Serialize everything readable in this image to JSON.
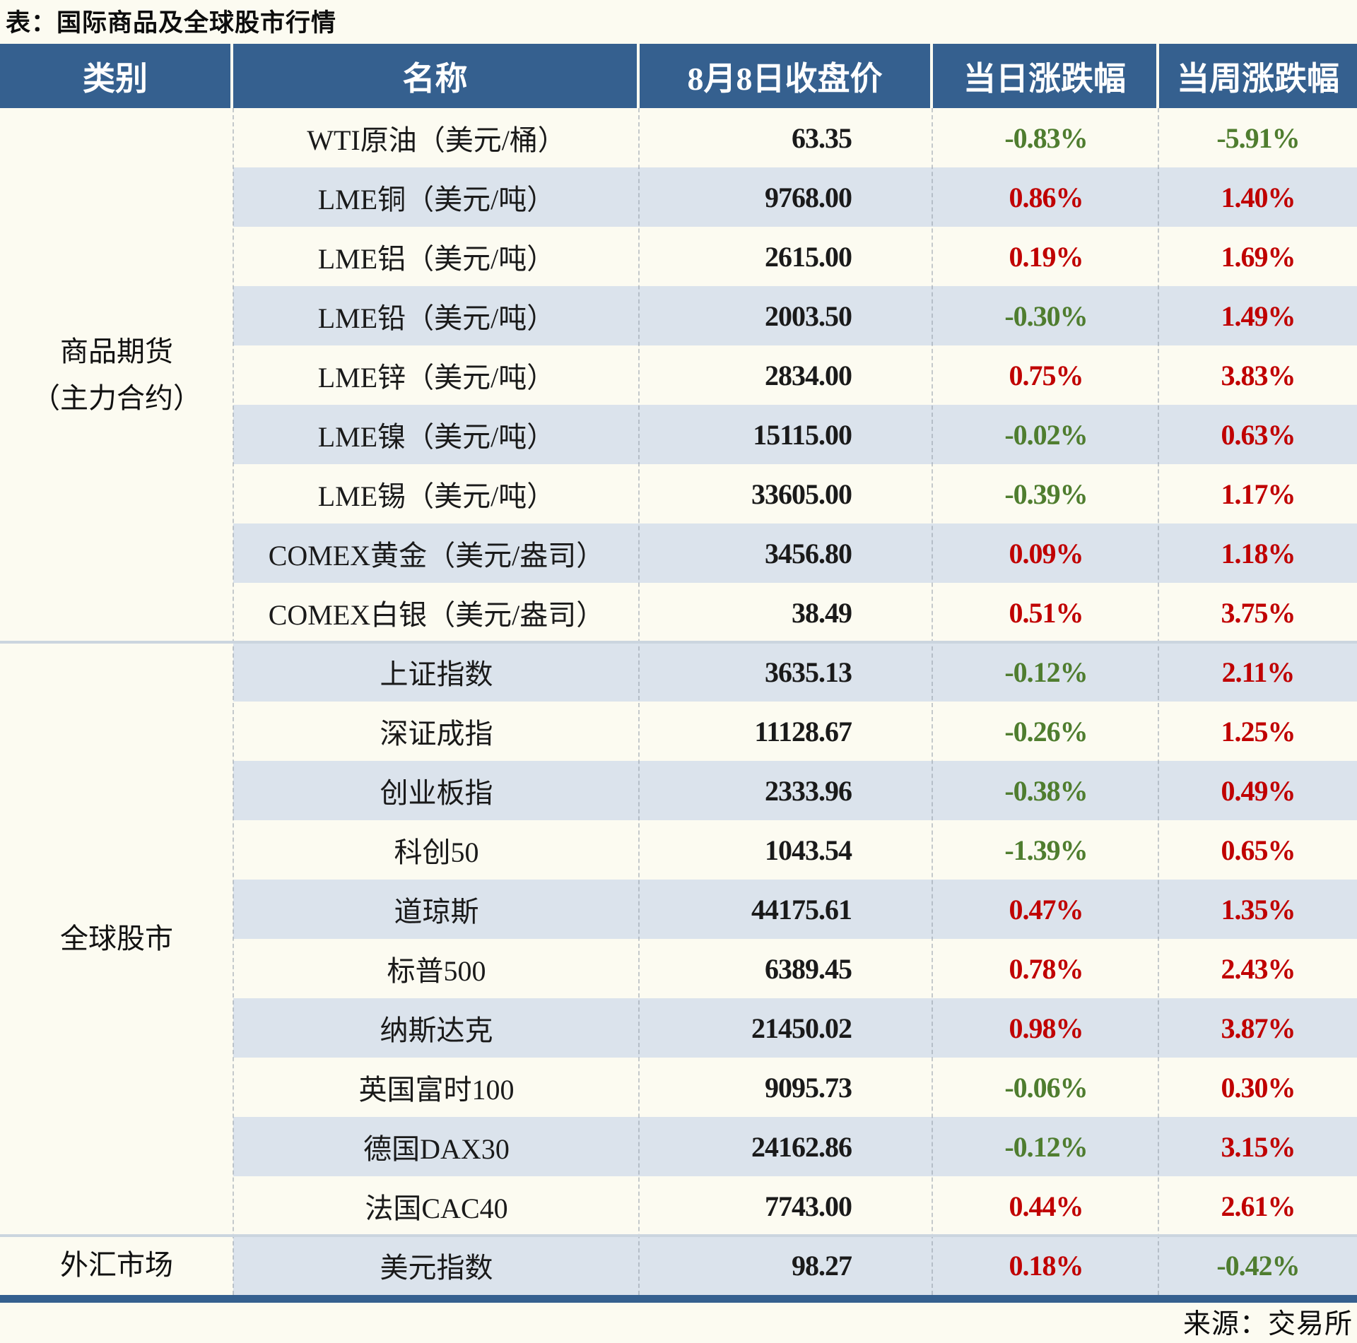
{
  "title": "表：国际商品及全球股市行情",
  "source": "来源：交易所",
  "colors": {
    "header_bg": "#35608F",
    "stripe_bg": "#DBE3EC",
    "page_bg": "#FCFBF1",
    "up_red": "#C00000",
    "down_green": "#4F7D2F",
    "bottom_border": "#35608F"
  },
  "table": {
    "headers": [
      "类别",
      "名称",
      "8月8日收盘价",
      "当日涨跌幅",
      "当周涨跌幅"
    ],
    "categories": [
      {
        "lines": [
          "商品期货",
          "（主力合约）"
        ],
        "row_span": 9
      },
      {
        "lines": [
          "全球股市"
        ],
        "row_span": 10
      },
      {
        "lines": [
          "外汇市场"
        ],
        "row_span": 1
      }
    ],
    "rows": [
      {
        "name": "WTI原油（美元/桶）",
        "close": "63.35",
        "daily": "-0.83%",
        "weekly": "-5.91%"
      },
      {
        "name": "LME铜（美元/吨）",
        "close": "9768.00",
        "daily": "0.86%",
        "weekly": "1.40%"
      },
      {
        "name": "LME铝（美元/吨）",
        "close": "2615.00",
        "daily": "0.19%",
        "weekly": "1.69%"
      },
      {
        "name": "LME铅（美元/吨）",
        "close": "2003.50",
        "daily": "-0.30%",
        "weekly": "1.49%"
      },
      {
        "name": "LME锌（美元/吨）",
        "close": "2834.00",
        "daily": "0.75%",
        "weekly": "3.83%"
      },
      {
        "name": "LME镍（美元/吨）",
        "close": "15115.00",
        "daily": "-0.02%",
        "weekly": "0.63%"
      },
      {
        "name": "LME锡（美元/吨）",
        "close": "33605.00",
        "daily": "-0.39%",
        "weekly": "1.17%"
      },
      {
        "name": "COMEX黄金（美元/盎司）",
        "close": "3456.80",
        "daily": "0.09%",
        "weekly": "1.18%"
      },
      {
        "name": "COMEX白银（美元/盎司）",
        "close": "38.49",
        "daily": "0.51%",
        "weekly": "3.75%"
      },
      {
        "name": "上证指数",
        "close": "3635.13",
        "daily": "-0.12%",
        "weekly": "2.11%"
      },
      {
        "name": "深证成指",
        "close": "11128.67",
        "daily": "-0.26%",
        "weekly": "1.25%"
      },
      {
        "name": "创业板指",
        "close": "2333.96",
        "daily": "-0.38%",
        "weekly": "0.49%"
      },
      {
        "name": "科创50",
        "close": "1043.54",
        "daily": "-1.39%",
        "weekly": "0.65%"
      },
      {
        "name": "道琼斯",
        "close": "44175.61",
        "daily": "0.47%",
        "weekly": "1.35%"
      },
      {
        "name": "标普500",
        "close": "6389.45",
        "daily": "0.78%",
        "weekly": "2.43%"
      },
      {
        "name": "纳斯达克",
        "close": "21450.02",
        "daily": "0.98%",
        "weekly": "3.87%"
      },
      {
        "name": "英国富时100",
        "close": "9095.73",
        "daily": "-0.06%",
        "weekly": "0.30%"
      },
      {
        "name": "德国DAX30",
        "close": "24162.86",
        "daily": "-0.12%",
        "weekly": "3.15%"
      },
      {
        "name": "法国CAC40",
        "close": "7743.00",
        "daily": "0.44%",
        "weekly": "2.61%"
      },
      {
        "name": "美元指数",
        "close": "98.27",
        "daily": "0.18%",
        "weekly": "-0.42%"
      }
    ]
  }
}
